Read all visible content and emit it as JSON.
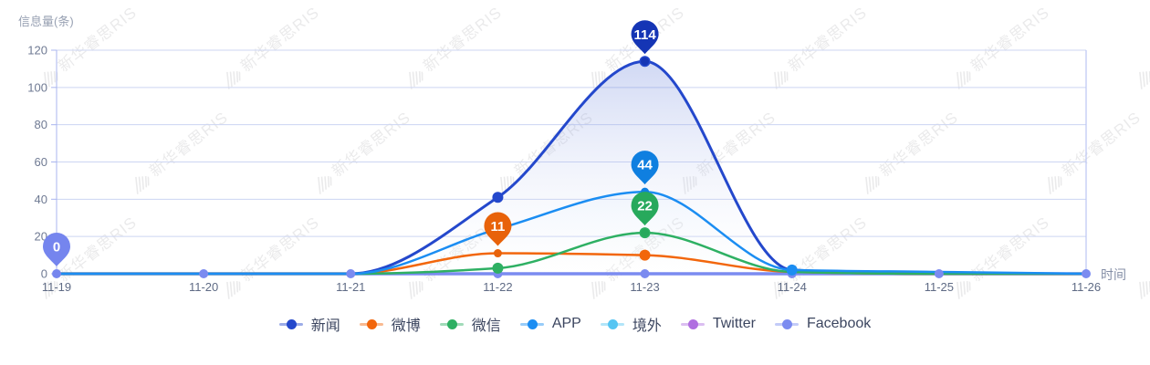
{
  "watermark": {
    "text": "新华睿思RIS"
  },
  "chart_data": {
    "type": "line",
    "ylabel": "信息量(条)",
    "xlabel": "时间",
    "ylim": [
      0,
      120
    ],
    "y_ticks": [
      0,
      20,
      40,
      60,
      80,
      100,
      120
    ],
    "grid": true,
    "legend_position": "bottom",
    "categories": [
      "11-19",
      "11-20",
      "11-21",
      "11-22",
      "11-23",
      "11-24",
      "11-25",
      "11-26"
    ],
    "series": [
      {
        "name": "新闻",
        "color": "#2448cc",
        "balloon_color": "#1535b5",
        "line_width": 3,
        "fill_from": "rgba(86,115,215,0.30)",
        "fill_to": "rgba(255,255,255,0.06)",
        "values": [
          0,
          0,
          0,
          41,
          114,
          2,
          0,
          0
        ]
      },
      {
        "name": "微博",
        "color": "#f2660c",
        "balloon_color": "#e8620a",
        "line_width": 2.5,
        "fill_from": "rgba(242,140,60,0.20)",
        "fill_to": "rgba(255,255,255,0.05)",
        "values": [
          0,
          0,
          0,
          11,
          10,
          1,
          0,
          0
        ]
      },
      {
        "name": "微信",
        "color": "#2eb063",
        "balloon_color": "#27a95c",
        "line_width": 2.5,
        "fill_from": "rgba(80,190,130,0.22)",
        "fill_to": "rgba(255,255,255,0.05)",
        "values": [
          0,
          0,
          0,
          3,
          22,
          1,
          0,
          0
        ]
      },
      {
        "name": "APP",
        "color": "#1b8df2",
        "balloon_color": "#0f7fe0",
        "line_width": 2.5,
        "fill_from": "rgba(90,165,240,0.25)",
        "fill_to": "rgba(255,255,255,0.05)",
        "values": [
          0,
          0,
          0,
          24,
          44,
          2,
          1,
          0
        ]
      },
      {
        "name": "境外",
        "color": "#55c5f2",
        "values": [
          0,
          0,
          0,
          0,
          0,
          0,
          0,
          0
        ]
      },
      {
        "name": "Twitter",
        "color": "#b06fe0",
        "values": [
          0,
          0,
          0,
          0,
          0,
          0,
          0,
          0
        ]
      },
      {
        "name": "Facebook",
        "color": "#7b8bf0",
        "balloon_color": "#7585ee",
        "show_all_dots": true,
        "values": [
          0,
          0,
          0,
          0,
          0,
          0,
          0,
          0
        ]
      }
    ],
    "dots": [
      {
        "series": "新闻",
        "category": "11-22",
        "value": 41
      },
      {
        "series": "新闻",
        "category": "11-23",
        "value": 114
      },
      {
        "series": "微博",
        "category": "11-23",
        "value": 10
      },
      {
        "series": "微信",
        "category": "11-22",
        "value": 3
      },
      {
        "series": "微信",
        "category": "11-23",
        "value": 22
      },
      {
        "series": "APP",
        "category": "11-24",
        "value": 2
      }
    ],
    "labeled_points": [
      {
        "series": "新闻",
        "category": "11-23",
        "value": 114,
        "label": "114"
      },
      {
        "series": "APP",
        "category": "11-23",
        "value": 44,
        "label": "44"
      },
      {
        "series": "微信",
        "category": "11-23",
        "value": 22,
        "label": "22"
      },
      {
        "series": "微博",
        "category": "11-22",
        "value": 11,
        "label": "11"
      },
      {
        "series": "Facebook",
        "category": "11-19",
        "value": 0,
        "label": "0"
      }
    ],
    "style": {
      "x_axis_line": "#7b8bf0",
      "y_axis_line": "#a9b5ef",
      "grid_line": "#ccd5f2",
      "right_border": "#bcc6f3",
      "tick_text": "#6f7a93",
      "date_text": "#5f6b85",
      "legend_text": "#3c4660",
      "axis_title_text": "#98a1b3",
      "balloon_text": "#ffffff",
      "watermark_text": "#77777c"
    }
  }
}
